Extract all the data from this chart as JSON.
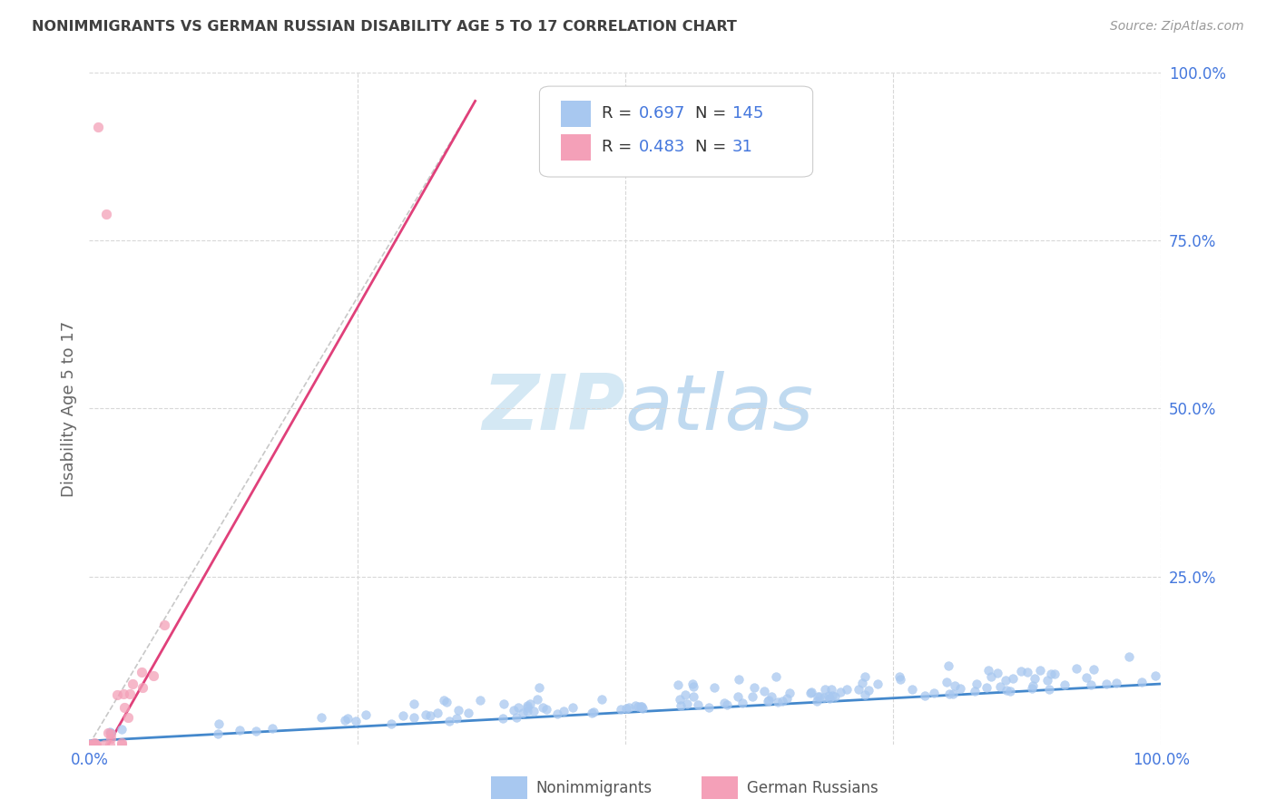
{
  "title": "NONIMMIGRANTS VS GERMAN RUSSIAN DISABILITY AGE 5 TO 17 CORRELATION CHART",
  "source": "Source: ZipAtlas.com",
  "ylabel": "Disability Age 5 to 17",
  "xlim": [
    0,
    1
  ],
  "ylim": [
    0,
    1
  ],
  "blue_R": 0.697,
  "blue_N": 145,
  "pink_R": 0.483,
  "pink_N": 31,
  "blue_color": "#a8c8f0",
  "pink_color": "#f4a0b8",
  "blue_line_color": "#4488cc",
  "pink_line_color": "#e0407a",
  "pink_dashed_color": "#c8c8c8",
  "legend_N_color": "#4477dd",
  "watermark_zip_color": "#c8dff0",
  "watermark_atlas_color": "#b8d4e8",
  "grid_color": "#d8d8d8",
  "title_color": "#404040",
  "axis_label_color": "#4477dd",
  "background_color": "#ffffff",
  "blue_slope": 0.085,
  "blue_intercept": 0.005,
  "pink_slope": 2.8,
  "pink_intercept": -0.05
}
